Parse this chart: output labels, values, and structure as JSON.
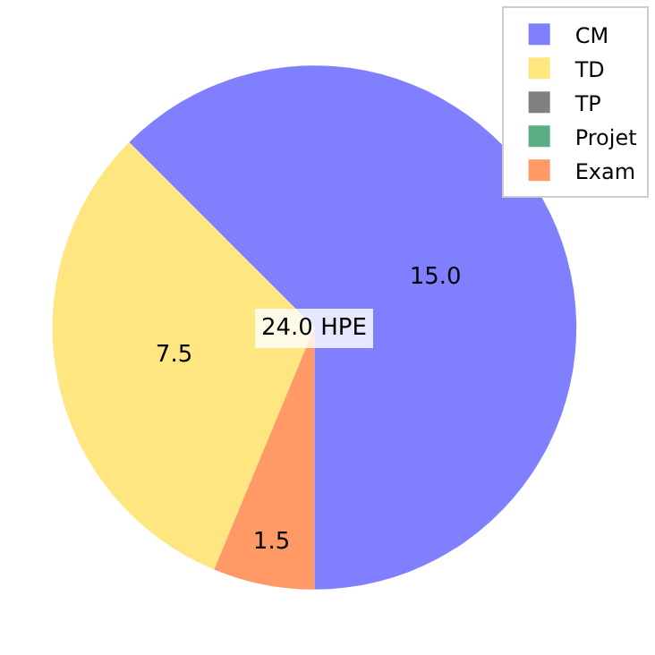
{
  "chart_data": {
    "type": "pie",
    "categories": [
      "CM",
      "TD",
      "TP",
      "Projet",
      "Exam"
    ],
    "values": [
      15,
      7.5,
      0,
      0,
      1.5
    ],
    "value_labels": [
      "15.0",
      "7.5",
      null,
      null,
      "1.5"
    ],
    "colors": [
      "#8080ff",
      "#ffe680",
      "#808080",
      "#5aae82",
      "#ff9966"
    ],
    "annotations": [
      "24.0 HPE"
    ],
    "legend": "top right"
  }
}
